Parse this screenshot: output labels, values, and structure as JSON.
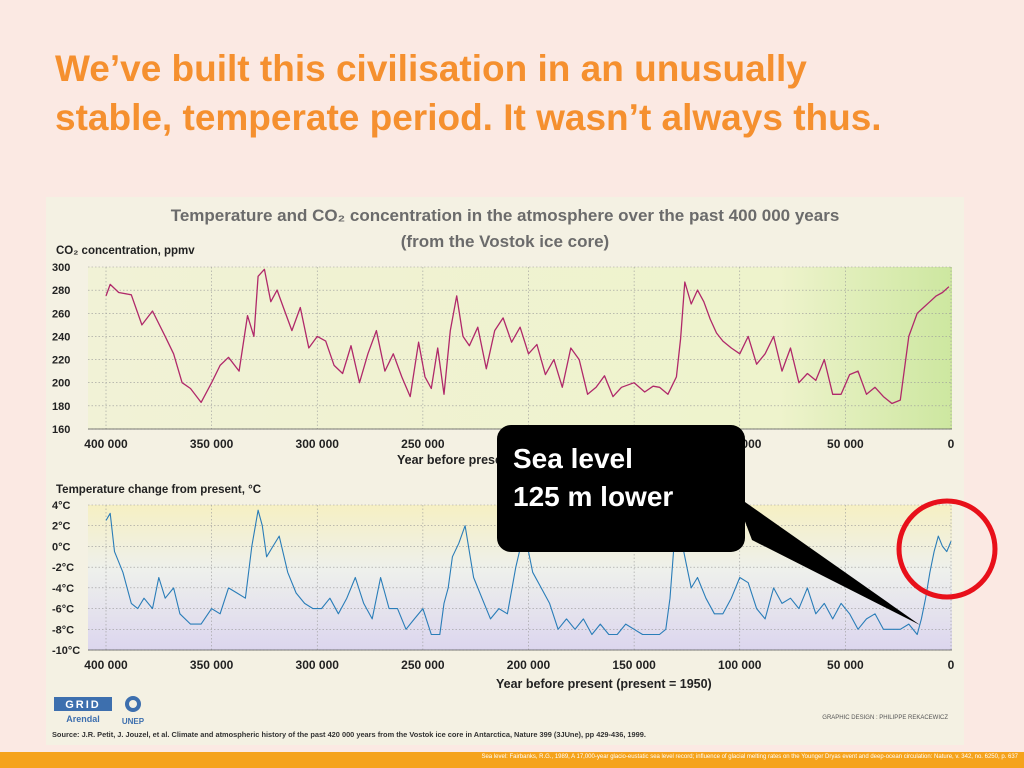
{
  "slide": {
    "title_line1": "We’ve built this civilisation in an unusually",
    "title_line2": "stable, temperate period. It wasn’t always thus.",
    "footer": "Sea level: Fairbanks, R.G., 1989, A 17,000-year glacio-eustatic sea level record; influence of glacial melting rates on the Younger Dryas event and deep-ocean circulation: Nature, v. 342, no. 6250, p. 637"
  },
  "callout": {
    "line1": "Sea level",
    "line2": "125 m lower"
  },
  "colors": {
    "title": "#f5902f",
    "co2_line": "#b0296a",
    "temp_line": "#2a7db8",
    "callout_bg": "#000000",
    "highlight_circle": "#e8101a",
    "footer_bar": "#f5a31c"
  },
  "chart_data": {
    "type": "line",
    "title_line1": "Temperature and CO₂ concentration in the atmosphere over the past 400 000 years",
    "title_line2": "(from the Vostok ice core)",
    "graphic_design": "GRAPHIC DESIGN : PHILIPPE REKACEWICZ",
    "source": "Source: J.R. Petit, J. Jouzel, et al. Climate and atmospheric history of the past 420 000 years from the Vostok ice core in Antarctica, Nature 399 (3JUne), pp 429-436, 1999.",
    "logos": [
      "GRID Arendal",
      "UNEP"
    ],
    "x_ticks": [
      "400 000",
      "350 000",
      "300 000",
      "250 000",
      "200 000",
      "150 000",
      "100 000",
      "50 000",
      "0"
    ],
    "x_tick_values": [
      400000,
      350000,
      300000,
      250000,
      200000,
      150000,
      100000,
      50000,
      0
    ],
    "xlim": [
      400000,
      0
    ],
    "panels": [
      {
        "name": "co2",
        "ylabel": "CO₂ concentration, ppmv",
        "xlabel": "Year before present",
        "ylim": [
          160,
          300
        ],
        "y_ticks": [
          "300",
          "280",
          "260",
          "240",
          "220",
          "200",
          "180",
          "160"
        ],
        "y_tick_values": [
          300,
          280,
          260,
          240,
          220,
          200,
          180,
          160
        ],
        "x": [
          400000,
          398000,
          394000,
          388000,
          383000,
          378000,
          372000,
          368000,
          364000,
          360000,
          355000,
          350000,
          346000,
          342000,
          337000,
          333000,
          330000,
          328000,
          325000,
          322000,
          319000,
          316000,
          312000,
          308000,
          304000,
          300000,
          296000,
          292000,
          288000,
          284000,
          280000,
          276000,
          272000,
          268000,
          264000,
          260000,
          256000,
          252000,
          249000,
          246000,
          243000,
          240000,
          237000,
          234000,
          231000,
          228000,
          224000,
          220000,
          216000,
          212000,
          208000,
          204000,
          200000,
          196000,
          192000,
          188000,
          184000,
          180000,
          176000,
          172000,
          168000,
          164000,
          160000,
          156000,
          150000,
          145000,
          141000,
          138000,
          134000,
          130000,
          128000,
          126000,
          123000,
          120000,
          117000,
          114000,
          111000,
          108000,
          104000,
          100000,
          96000,
          92000,
          88000,
          84000,
          80000,
          76000,
          72000,
          68000,
          64000,
          60000,
          56000,
          52000,
          48000,
          44000,
          40000,
          36000,
          32000,
          28000,
          24000,
          20000,
          16000,
          13000,
          10000,
          7000,
          4000,
          1000
        ],
        "values": [
          275,
          285,
          278,
          276,
          250,
          262,
          240,
          225,
          200,
          195,
          183,
          200,
          215,
          222,
          210,
          258,
          240,
          292,
          298,
          270,
          280,
          265,
          245,
          265,
          230,
          240,
          236,
          215,
          208,
          232,
          200,
          225,
          245,
          210,
          225,
          205,
          188,
          235,
          205,
          195,
          230,
          190,
          245,
          275,
          240,
          232,
          248,
          212,
          245,
          256,
          235,
          248,
          225,
          233,
          207,
          220,
          196,
          230,
          220,
          190,
          196,
          206,
          188,
          196,
          200,
          192,
          197,
          196,
          190,
          205,
          238,
          287,
          268,
          280,
          270,
          255,
          243,
          236,
          230,
          225,
          240,
          216,
          225,
          240,
          210,
          230,
          200,
          208,
          202,
          220,
          190,
          190,
          207,
          210,
          190,
          196,
          188,
          182,
          185,
          240,
          260,
          265,
          270,
          275,
          278,
          283
        ]
      },
      {
        "name": "temperature",
        "ylabel": "Temperature change from present, °C",
        "xlabel": "Year before present (present = 1950)",
        "ylim": [
          -10,
          4
        ],
        "y_ticks": [
          "4°C",
          "2°C",
          "0°C",
          "-2°C",
          "-4°C",
          "-6°C",
          "-8°C",
          "-10°C"
        ],
        "y_tick_values": [
          4,
          2,
          0,
          -2,
          -4,
          -6,
          -8,
          -10
        ],
        "x": [
          400000,
          398000,
          396000,
          392000,
          388000,
          385000,
          382000,
          378000,
          375000,
          372000,
          368000,
          365000,
          360000,
          355000,
          350000,
          346000,
          342000,
          338000,
          334000,
          331000,
          328000,
          326000,
          324000,
          321000,
          318000,
          314000,
          310000,
          306000,
          302000,
          298000,
          294000,
          290000,
          286000,
          282000,
          278000,
          274000,
          270000,
          266000,
          262000,
          258000,
          254000,
          250000,
          246000,
          242000,
          240000,
          238000,
          236000,
          233000,
          230000,
          226000,
          222000,
          218000,
          214000,
          210000,
          206000,
          202000,
          198000,
          194000,
          190000,
          186000,
          182000,
          178000,
          174000,
          170000,
          166000,
          162000,
          158000,
          154000,
          150000,
          146000,
          142000,
          138000,
          135000,
          133000,
          131000,
          129000,
          127000,
          125000,
          123000,
          120000,
          116000,
          112000,
          108000,
          104000,
          100000,
          96000,
          92000,
          88000,
          84000,
          80000,
          76000,
          72000,
          68000,
          64000,
          60000,
          56000,
          52000,
          48000,
          44000,
          40000,
          36000,
          32000,
          28000,
          24000,
          20000,
          16000,
          14000,
          12000,
          10000,
          8000,
          6000,
          4000,
          2000,
          0
        ],
        "values": [
          2.5,
          3.2,
          -0.5,
          -2.5,
          -5.5,
          -6,
          -5,
          -6,
          -3,
          -5,
          -4,
          -6.5,
          -7.5,
          -7.5,
          -6,
          -6.5,
          -4,
          -4.5,
          -5,
          0,
          3.5,
          2,
          -1,
          0,
          1,
          -2.5,
          -4.5,
          -5.5,
          -6,
          -6,
          -5,
          -6.5,
          -5,
          -3,
          -5.5,
          -7,
          -3,
          -6,
          -6,
          -8,
          -7,
          -6,
          -8.5,
          -8.5,
          -5.5,
          -4,
          -1,
          0.3,
          2,
          -3,
          -5,
          -7,
          -6,
          -6.5,
          -2,
          1.5,
          -2.5,
          -4,
          -5.5,
          -8,
          -7,
          -8,
          -7,
          -8.5,
          -7.5,
          -8.5,
          -8.5,
          -7.5,
          -8,
          -8.5,
          -8.5,
          -8.5,
          -8,
          -5,
          0.5,
          1.5,
          0,
          -2,
          -4,
          -3,
          -5,
          -6.5,
          -6.5,
          -5,
          -3,
          -3.5,
          -6,
          -7,
          -4,
          -5.5,
          -5,
          -6,
          -4,
          -6.5,
          -5.5,
          -7,
          -5.5,
          -6.5,
          -8,
          -7,
          -6.5,
          -8,
          -8,
          -8,
          -7.5,
          -8.5,
          -7,
          -5,
          -2.5,
          -0.5,
          1,
          0,
          -0.5,
          0.5
        ]
      }
    ]
  }
}
